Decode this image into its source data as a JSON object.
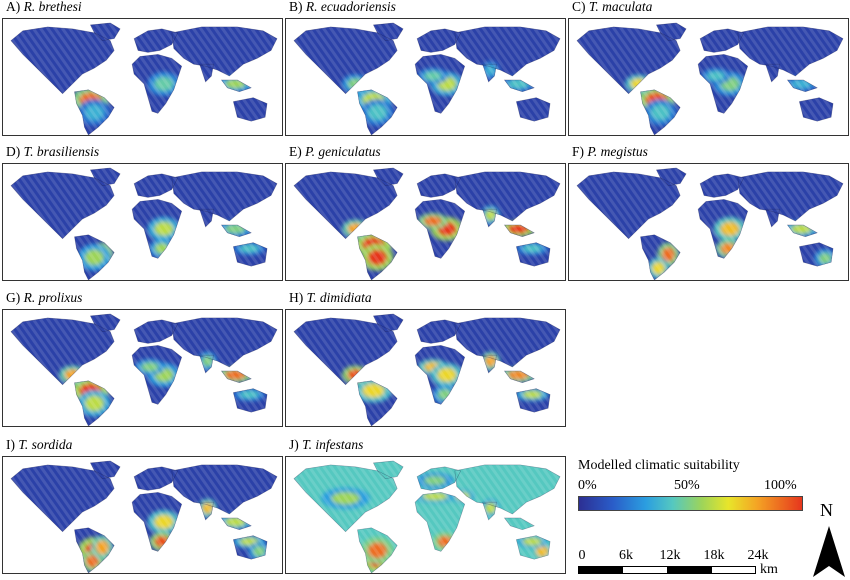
{
  "panels": [
    {
      "letter": "A)",
      "species": "R. brethesi",
      "hotspots": [
        [
          "sa_n",
          0.9
        ],
        [
          "sa_c",
          0.35
        ],
        [
          "af_c",
          0.45
        ],
        [
          "sea",
          0.55
        ]
      ]
    },
    {
      "letter": "B)",
      "species": "R. ecuadoriensis",
      "hotspots": [
        [
          "ca",
          0.5
        ],
        [
          "sa_n",
          0.6
        ],
        [
          "sa_c",
          0.4
        ],
        [
          "af_c",
          0.6
        ],
        [
          "af_w",
          0.45
        ],
        [
          "sea",
          0.4
        ],
        [
          "in",
          0.35
        ]
      ]
    },
    {
      "letter": "C)",
      "species": "T. maculata",
      "hotspots": [
        [
          "sa_n",
          0.95
        ],
        [
          "ca",
          0.7
        ],
        [
          "sa_c",
          0.4
        ],
        [
          "af_c",
          0.5
        ],
        [
          "af_w",
          0.4
        ],
        [
          "sea",
          0.35
        ]
      ]
    },
    {
      "letter": "D)",
      "species": "T. brasiliensis",
      "hotspots": [
        [
          "sa_e",
          0.95
        ],
        [
          "sa_c",
          0.55
        ],
        [
          "af_c",
          0.6
        ],
        [
          "af_s",
          0.55
        ],
        [
          "sea",
          0.5
        ],
        [
          "au_n",
          0.4
        ]
      ]
    },
    {
      "letter": "E)",
      "species": "P. geniculatus",
      "hotspots": [
        [
          "sa_n",
          1.0
        ],
        [
          "sa_c",
          1.0
        ],
        [
          "ca",
          0.8
        ],
        [
          "af_c",
          1.0
        ],
        [
          "af_w",
          0.9
        ],
        [
          "sea",
          1.0
        ],
        [
          "in",
          0.6
        ],
        [
          "au_n",
          0.4
        ]
      ]
    },
    {
      "letter": "F)",
      "species": "P. megistus",
      "hotspots": [
        [
          "sa_e",
          0.9
        ],
        [
          "sa_s",
          0.7
        ],
        [
          "af_c",
          0.75
        ],
        [
          "af_s",
          0.85
        ],
        [
          "sea",
          0.6
        ],
        [
          "au_e",
          0.5
        ]
      ]
    },
    {
      "letter": "G)",
      "species": "R. prolixus",
      "hotspots": [
        [
          "sa_n",
          1.0
        ],
        [
          "ca",
          0.8
        ],
        [
          "sa_c",
          0.6
        ],
        [
          "af_c",
          0.55
        ],
        [
          "af_w",
          0.5
        ],
        [
          "sea",
          0.9
        ],
        [
          "in",
          0.5
        ],
        [
          "au_n",
          0.4
        ]
      ]
    },
    {
      "letter": "H)",
      "species": "T. dimidiata",
      "hotspots": [
        [
          "ca",
          0.95
        ],
        [
          "sa_n",
          0.7
        ],
        [
          "af_w",
          0.75
        ],
        [
          "af_c",
          0.7
        ],
        [
          "af_s",
          0.5
        ],
        [
          "in",
          0.8
        ],
        [
          "sea",
          0.85
        ],
        [
          "au_n",
          0.6
        ]
      ]
    },
    {
      "letter": "I)",
      "species": "T. sordida",
      "hotspots": [
        [
          "sa_c",
          1.0
        ],
        [
          "sa_s",
          0.9
        ],
        [
          "sa_e",
          0.8
        ],
        [
          "af_c",
          0.7
        ],
        [
          "af_s",
          0.95
        ],
        [
          "in",
          0.75
        ],
        [
          "sea",
          0.6
        ],
        [
          "au_n",
          0.6
        ],
        [
          "au_e",
          0.5
        ]
      ]
    },
    {
      "letter": "J)",
      "species": "T. infestans",
      "background": 0.42,
      "hotspots": [
        [
          "sa_s",
          1.0
        ],
        [
          "sa_c",
          0.9
        ],
        [
          "af_s",
          0.9
        ],
        [
          "af_n",
          0.6
        ],
        [
          "me",
          0.6
        ],
        [
          "in",
          0.6
        ],
        [
          "au_e",
          0.75
        ],
        [
          "au_n",
          0.6
        ],
        [
          "us",
          0.55
        ],
        [
          "eu",
          0.5
        ]
      ]
    }
  ],
  "legend": {
    "title": "Modelled climatic suitability",
    "ticks": [
      "0%",
      "50%",
      "100%"
    ]
  },
  "scalebar": {
    "ticks": [
      "0",
      "6k",
      "12k",
      "18k",
      "24k"
    ],
    "unit": "km"
  },
  "north_arrow": {
    "letter": "N"
  },
  "colors": {
    "low": "#2c2f93",
    "mid_low": "#2b9ee0",
    "mid": "#9dd45a",
    "mid_high": "#f4a324",
    "high": "#e6361d",
    "frame": "#333333"
  }
}
